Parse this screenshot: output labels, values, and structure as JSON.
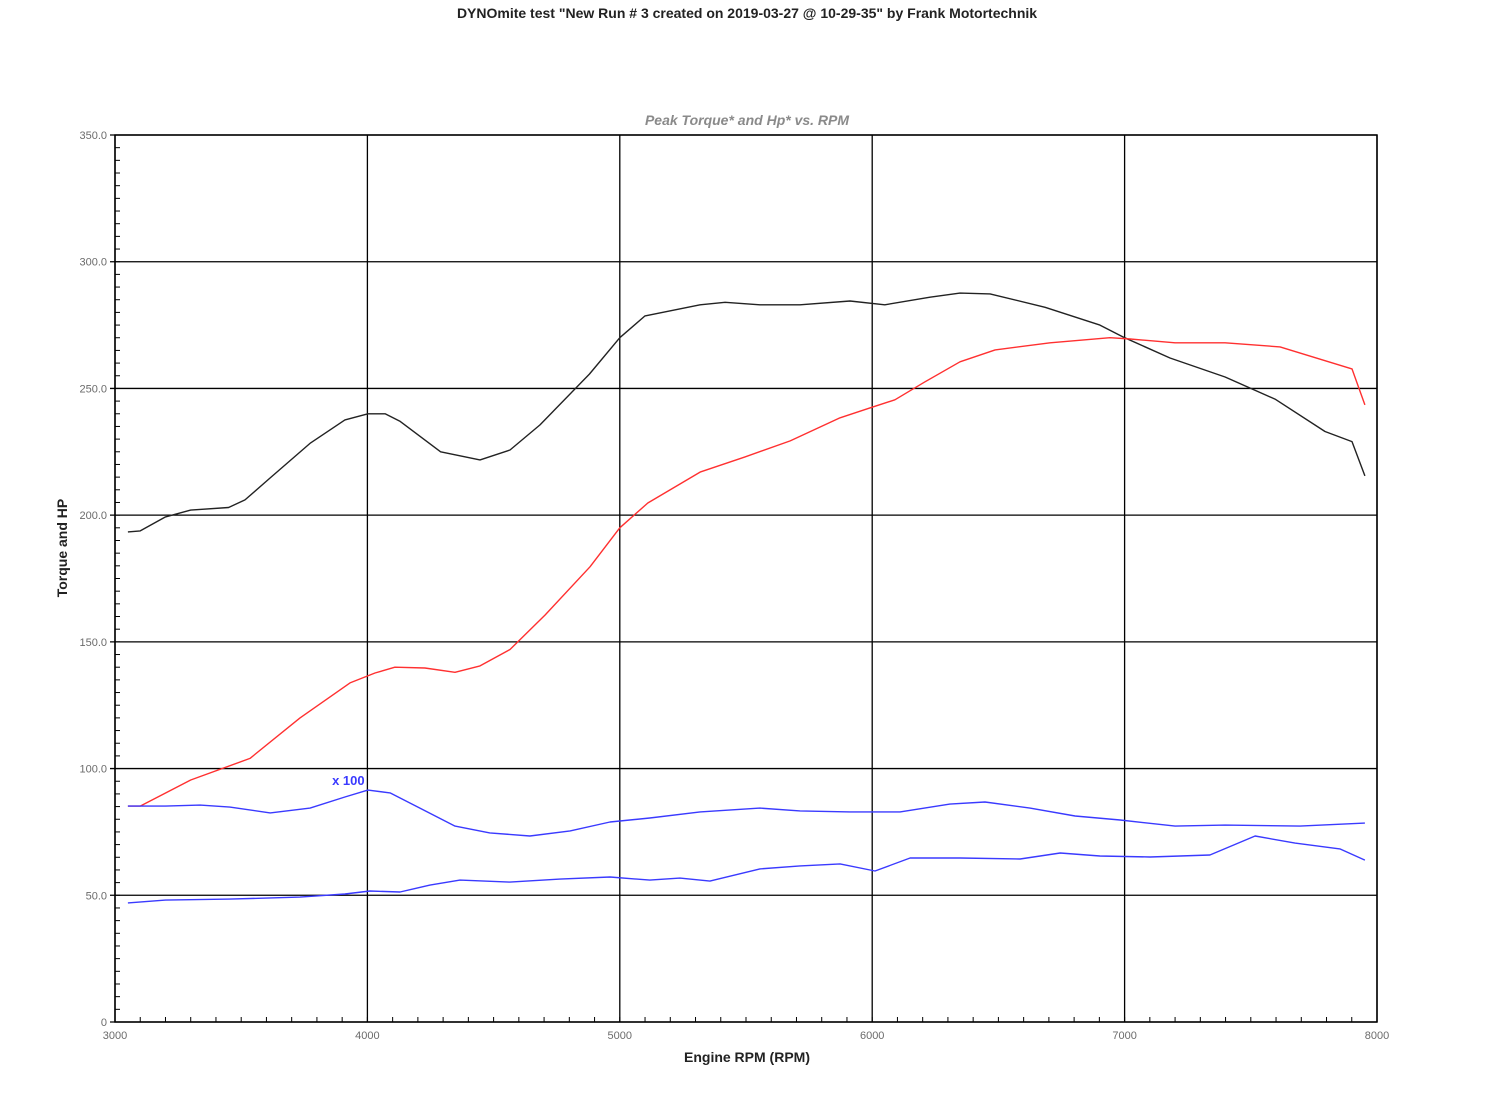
{
  "chart_data": {
    "type": "line",
    "title": "DYNOmite test \"New Run # 3 created on 2019-03-27 @ 10-29-35\" by Frank Motortechnik",
    "subtitle": "Peak Torque* and Hp* vs. RPM",
    "xlabel": "Engine RPM (RPM)",
    "ylabel": "Torque and HP",
    "xlim": [
      3000,
      8000
    ],
    "ylim": [
      0,
      350
    ],
    "x_ticks": [
      "3000",
      "4000",
      "5000",
      "6000",
      "7000",
      "8000"
    ],
    "y_ticks": [
      "0",
      "50.0",
      "100.0",
      "150.0",
      "200.0",
      "250.0",
      "300.0",
      "350.0"
    ],
    "grid": true,
    "annotation": "x 100",
    "series": [
      {
        "color": "#222222",
        "points": [
          [
            3051,
            193.4
          ],
          [
            3100,
            193.8
          ],
          [
            3200,
            199.3
          ],
          [
            3300,
            202
          ],
          [
            3450,
            203
          ],
          [
            3515,
            206
          ],
          [
            3615,
            214.7
          ],
          [
            3775,
            228.5
          ],
          [
            3911,
            237.6
          ],
          [
            4002,
            240
          ],
          [
            4070,
            240
          ],
          [
            4130,
            237
          ],
          [
            4290,
            225
          ],
          [
            4446,
            221.8
          ],
          [
            4565,
            225.7
          ],
          [
            4684,
            235.6
          ],
          [
            4880,
            255.7
          ],
          [
            5000,
            270
          ],
          [
            5100,
            278.6
          ],
          [
            5318,
            283
          ],
          [
            5417,
            284
          ],
          [
            5555,
            283
          ],
          [
            5714,
            283
          ],
          [
            5912,
            284.5
          ],
          [
            6050,
            283
          ],
          [
            6229,
            286
          ],
          [
            6348,
            287.6
          ],
          [
            6467,
            287.3
          ],
          [
            6685,
            282
          ],
          [
            6902,
            275
          ],
          [
            7000,
            270
          ],
          [
            7180,
            262
          ],
          [
            7398,
            254.5
          ],
          [
            7596,
            245.8
          ],
          [
            7794,
            233
          ],
          [
            7901,
            229
          ],
          [
            7952,
            215.5
          ]
        ]
      },
      {
        "color": "#ff3030",
        "points": [
          [
            3051,
            85.2
          ],
          [
            3100,
            85.2
          ],
          [
            3300,
            95.5
          ],
          [
            3535,
            104
          ],
          [
            3733,
            120
          ],
          [
            3931,
            133.8
          ],
          [
            4030,
            137.7
          ],
          [
            4109,
            140
          ],
          [
            4228,
            139.7
          ],
          [
            4347,
            138
          ],
          [
            4446,
            140.5
          ],
          [
            4565,
            147
          ],
          [
            4704,
            160.6
          ],
          [
            4882,
            179.6
          ],
          [
            5000,
            195
          ],
          [
            5111,
            204.8
          ],
          [
            5318,
            217
          ],
          [
            5496,
            223
          ],
          [
            5675,
            229.3
          ],
          [
            5873,
            238.4
          ],
          [
            5991,
            242.3
          ],
          [
            6090,
            245.5
          ],
          [
            6209,
            252.6
          ],
          [
            6348,
            260.5
          ],
          [
            6487,
            265.2
          ],
          [
            6705,
            268
          ],
          [
            6942,
            270
          ],
          [
            7022,
            269.5
          ],
          [
            7200,
            268
          ],
          [
            7398,
            268
          ],
          [
            7616,
            266.4
          ],
          [
            7901,
            257.7
          ],
          [
            7952,
            243.5
          ]
        ]
      },
      {
        "color": "#3a3aff",
        "points": [
          [
            3051,
            85.2
          ],
          [
            3200,
            85.2
          ],
          [
            3337,
            85.6
          ],
          [
            3455,
            84.8
          ],
          [
            3615,
            82.5
          ],
          [
            3773,
            84.4
          ],
          [
            3911,
            88.8
          ],
          [
            4002,
            91.5
          ],
          [
            4090,
            90.4
          ],
          [
            4208,
            84.4
          ],
          [
            4347,
            77.3
          ],
          [
            4485,
            74.6
          ],
          [
            4644,
            73.4
          ],
          [
            4803,
            75.4
          ],
          [
            4961,
            78.9
          ],
          [
            5119,
            80.5
          ],
          [
            5318,
            82.9
          ],
          [
            5555,
            84.4
          ],
          [
            5714,
            83.3
          ],
          [
            5912,
            82.9
          ],
          [
            6110,
            82.9
          ],
          [
            6308,
            86
          ],
          [
            6447,
            86.8
          ],
          [
            6625,
            84.4
          ],
          [
            6804,
            81.3
          ],
          [
            6982,
            79.7
          ],
          [
            7200,
            77.3
          ],
          [
            7398,
            77.7
          ],
          [
            7695,
            77.3
          ],
          [
            7952,
            78.5
          ]
        ]
      },
      {
        "color": "#3a3aff",
        "points": [
          [
            3051,
            47
          ],
          [
            3200,
            48.1
          ],
          [
            3455,
            48.5
          ],
          [
            3733,
            49.3
          ],
          [
            3911,
            50.5
          ],
          [
            4010,
            51.7
          ],
          [
            4129,
            51.3
          ],
          [
            4248,
            54
          ],
          [
            4367,
            56
          ],
          [
            4565,
            55.2
          ],
          [
            4763,
            56.4
          ],
          [
            4961,
            57.2
          ],
          [
            5119,
            56
          ],
          [
            5238,
            56.8
          ],
          [
            5357,
            55.6
          ],
          [
            5555,
            60.4
          ],
          [
            5714,
            61.6
          ],
          [
            5873,
            62.4
          ],
          [
            6011,
            59.6
          ],
          [
            6150,
            64.7
          ],
          [
            6348,
            64.7
          ],
          [
            6586,
            64.3
          ],
          [
            6745,
            66.7
          ],
          [
            6902,
            65.5
          ],
          [
            7101,
            65.1
          ],
          [
            7338,
            65.9
          ],
          [
            7517,
            73.4
          ],
          [
            7675,
            70.6
          ],
          [
            7853,
            68.3
          ],
          [
            7952,
            63.9
          ]
        ]
      }
    ]
  }
}
